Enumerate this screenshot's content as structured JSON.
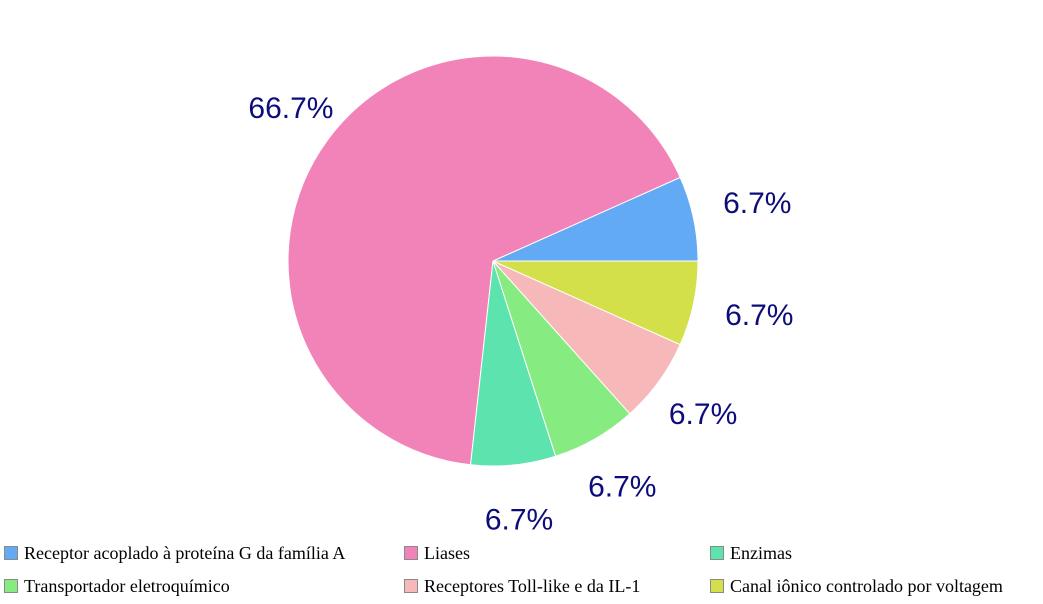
{
  "chart_data": {
    "type": "pie",
    "title": "",
    "categories": [
      "Receptor acoplado à proteína G da família A",
      "Liases",
      "Enzimas",
      "Transportador eletroquímico",
      "Receptores Toll-like e da IL-1",
      "Canal iônico controlado por voltagem"
    ],
    "values": [
      6.7,
      66.7,
      6.7,
      6.7,
      6.7,
      6.7
    ],
    "labels": [
      "6.7%",
      "66.7%",
      "6.7%",
      "6.7%",
      "6.7%",
      "6.7%"
    ],
    "colors": [
      "#62aaf4",
      "#f283b8",
      "#5de3ae",
      "#86ec82",
      "#f7b8b9",
      "#d3e04a"
    ],
    "legend_position": "bottom",
    "start": "right, counter-clockwise"
  },
  "legend": {
    "items": [
      {
        "label": "Receptor acoplado à proteína G da família A",
        "color": "#62aaf4"
      },
      {
        "label": "Liases",
        "color": "#f283b8"
      },
      {
        "label": "Enzimas",
        "color": "#5de3ae"
      },
      {
        "label": "Transportador eletroquímico",
        "color": "#86ec82"
      },
      {
        "label": "Receptores Toll-like e da IL-1",
        "color": "#f7b8b9"
      },
      {
        "label": "Canal iônico controlado por voltagem",
        "color": "#d3e04a"
      }
    ]
  }
}
